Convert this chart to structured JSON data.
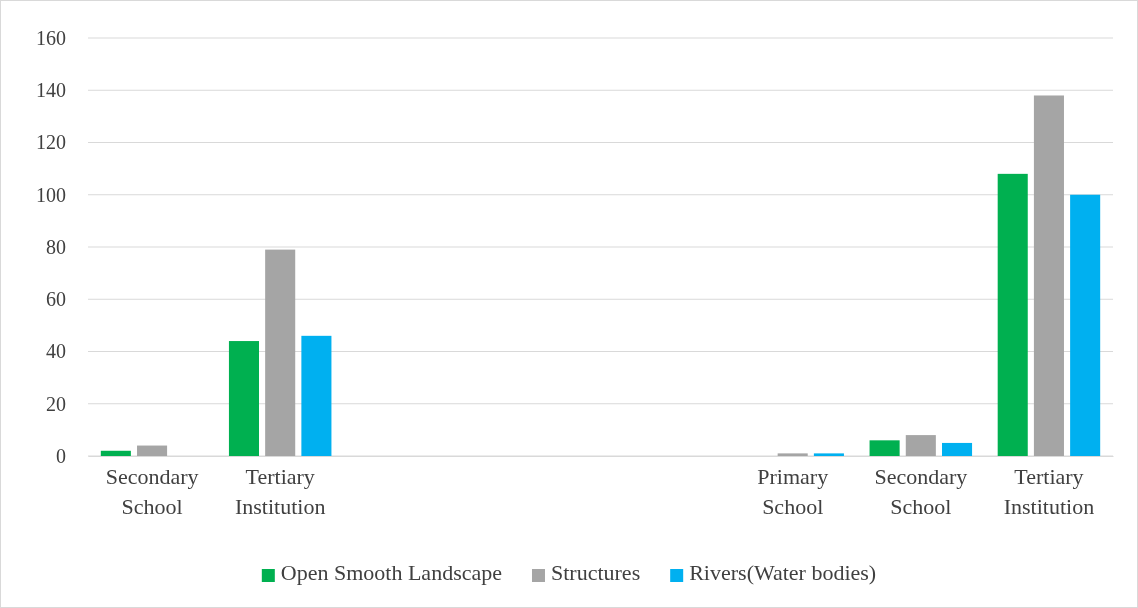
{
  "chart_data": {
    "type": "bar",
    "categories": [
      "Secondary School",
      "Tertiary Institution",
      null,
      null,
      null,
      "Primary School",
      "Secondary School",
      "Tertiary Institution"
    ],
    "series": [
      {
        "name": "Open Smooth Landscape",
        "color": "#00b050",
        "values": [
          2,
          44,
          null,
          null,
          null,
          0,
          6,
          108
        ]
      },
      {
        "name": "Structures",
        "color": "#a5a5a5",
        "values": [
          4,
          79,
          null,
          null,
          null,
          1,
          8,
          138
        ]
      },
      {
        "name": "Rivers(Water bodies)",
        "color": "#00b0f0",
        "values": [
          0,
          46,
          null,
          null,
          null,
          1,
          5,
          100
        ]
      }
    ],
    "ylim": [
      0,
      160
    ],
    "yticks": [
      0,
      20,
      40,
      60,
      80,
      100,
      120,
      140,
      160
    ],
    "grid": "y",
    "legend": "bottom"
  }
}
